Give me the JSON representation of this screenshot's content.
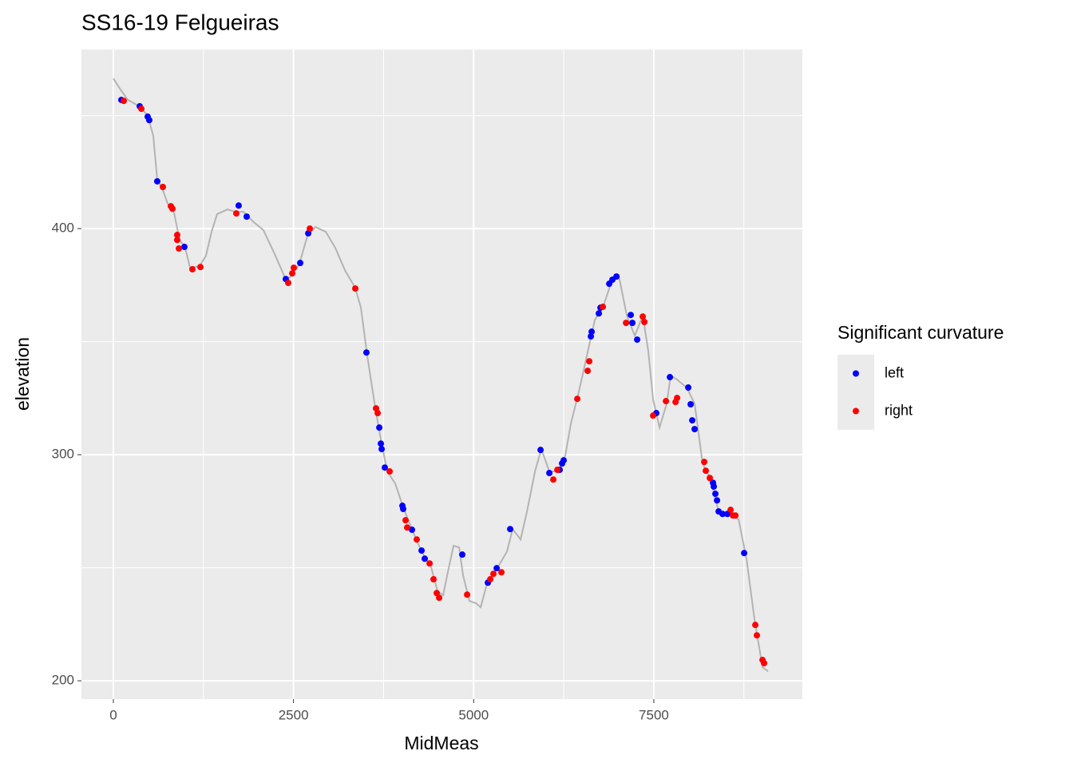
{
  "chart_data": {
    "type": "line",
    "title": "SS16-19 Felgueiras",
    "xlabel": "MidMeas",
    "ylabel": "elevation",
    "legend_title": "Significant curvature",
    "legend": "right",
    "grid": true,
    "color": "#b3b3b3",
    "x": [
      0,
      89,
      199,
      366,
      476,
      554,
      609,
      676,
      754,
      842,
      920,
      997,
      1064,
      1197,
      1285,
      1363,
      1440,
      1584,
      1695,
      1806,
      1950,
      2083,
      2249,
      2393,
      2471,
      2582,
      2693,
      2803,
      2947,
      3080,
      3213,
      3357,
      3435,
      3523,
      3634,
      3712,
      3800,
      3911,
      4022,
      4133,
      4277,
      4410,
      4499,
      4576,
      4632,
      4720,
      4798,
      4853,
      4942,
      5031,
      5097,
      5186,
      5319,
      5463,
      5540,
      5651,
      5740,
      5851,
      5939,
      6050,
      6183,
      6271,
      6349,
      6460,
      6571,
      6682,
      6792,
      6903,
      7014,
      7125,
      7236,
      7346,
      7424,
      7490,
      7579,
      7679,
      7734,
      7823,
      7956,
      8066,
      8177,
      8288,
      8399,
      8565,
      8676,
      8787,
      8897,
      9008,
      9086
    ],
    "values": [
      466.4,
      462,
      457,
      454,
      450,
      441,
      421.6,
      418,
      411,
      407,
      395,
      391.5,
      382.7,
      383.4,
      388,
      398.6,
      406.4,
      408.5,
      407.4,
      407.4,
      402.8,
      399.3,
      388,
      377.4,
      379,
      384.5,
      396.8,
      400.7,
      398.6,
      391.5,
      381.6,
      373.8,
      365,
      343.8,
      320.8,
      306.7,
      292.6,
      287.3,
      276.7,
      267.8,
      257.2,
      250.2,
      239.6,
      237.8,
      246.6,
      259.7,
      259,
      246.6,
      235.3,
      234.3,
      232.5,
      243.1,
      249.4,
      257.2,
      267.1,
      262.5,
      274.9,
      292.6,
      302.5,
      292.6,
      292.6,
      299.6,
      313.8,
      327.9,
      343.8,
      359.7,
      365,
      375.6,
      379.1,
      361.5,
      352.6,
      361.5,
      345.6,
      324.4,
      312,
      322.6,
      335,
      333.2,
      329.7,
      322.6,
      296.1,
      289,
      274.9,
      273.1,
      271.4,
      253.7,
      227.2,
      206,
      204.2
    ],
    "series": [
      {
        "name": "left",
        "type": "scatter",
        "color": "#0000ff",
        "x": [
          111,
          366,
          476,
          498,
          609,
          986,
          1739,
          1850,
          2393,
          2593,
          2704,
          3512,
          3690,
          3712,
          3723,
          3767,
          4011,
          4022,
          4144,
          4277,
          4321,
          4842,
          5197,
          5319,
          5507,
          5928,
          6050,
          6194,
          6227,
          6249,
          6626,
          6637,
          6737,
          6759,
          6881,
          6925,
          6981,
          7180,
          7202,
          7269,
          7534,
          7723,
          7978,
          8011,
          8033,
          8066,
          8321,
          8332,
          8354,
          8377,
          8399,
          8454,
          8521,
          8753
        ],
        "values": [
          456.9,
          454.1,
          449.5,
          448,
          420.9,
          391.9,
          410.2,
          405.3,
          377.7,
          384.8,
          397.9,
          345.2,
          312,
          304.9,
          302.5,
          294.3,
          277.4,
          276,
          266.8,
          257.6,
          254,
          255.8,
          243.4,
          249.8,
          267.1,
          302.1,
          291.9,
          293.3,
          296.1,
          297.5,
          352.3,
          354.4,
          362.5,
          365,
          375.6,
          377.4,
          378.8,
          361.8,
          358.3,
          350.9,
          318.4,
          334.3,
          329.7,
          322.3,
          315.2,
          311.3,
          287.6,
          285.9,
          282.7,
          279.8,
          274.9,
          273.8,
          273.8,
          256.5
        ]
      },
      {
        "name": "right",
        "type": "scatter",
        "color": "#ff0000",
        "x": [
          144,
          388,
          687,
          798,
          820,
          886,
          886,
          909,
          1097,
          1208,
          1706,
          2426,
          2482,
          2504,
          2726,
          3357,
          3645,
          3668,
          3834,
          4055,
          4077,
          4210,
          4388,
          4443,
          4487,
          4521,
          4909,
          5230,
          5274,
          5385,
          6105,
          6161,
          6438,
          6582,
          6604,
          6792,
          7114,
          7346,
          7369,
          7490,
          7668,
          7801,
          7823,
          8199,
          8221,
          8277,
          8565,
          8598,
          8632,
          8908,
          8930,
          9008,
          9030
        ],
        "values": [
          456.5,
          453,
          418.4,
          409.9,
          408.8,
          397.2,
          395,
          391.2,
          382,
          383,
          406.7,
          376,
          380.2,
          382.7,
          400,
          373.5,
          320.5,
          318.4,
          292.6,
          271,
          267.8,
          262.5,
          251.9,
          244.9,
          238.8,
          236.7,
          238.1,
          244.9,
          247.3,
          248,
          289,
          293.3,
          324.7,
          337.1,
          341.3,
          365.4,
          358.3,
          361.1,
          358.7,
          317.3,
          323.7,
          323.3,
          325.1,
          296.8,
          292.9,
          289.7,
          275.6,
          273.1,
          273.1,
          224.7,
          220.1,
          209.2,
          207.8
        ]
      }
    ],
    "xlim": [
      -443,
      9561
    ],
    "ylim": [
      191.9,
      479.2
    ],
    "xticks": [
      0,
      2500,
      5000,
      7500
    ],
    "yticks": [
      200,
      300,
      400
    ],
    "xminorticks": [
      1250,
      3750,
      6250,
      8750
    ],
    "yminorticks": [
      250,
      350,
      450
    ]
  }
}
